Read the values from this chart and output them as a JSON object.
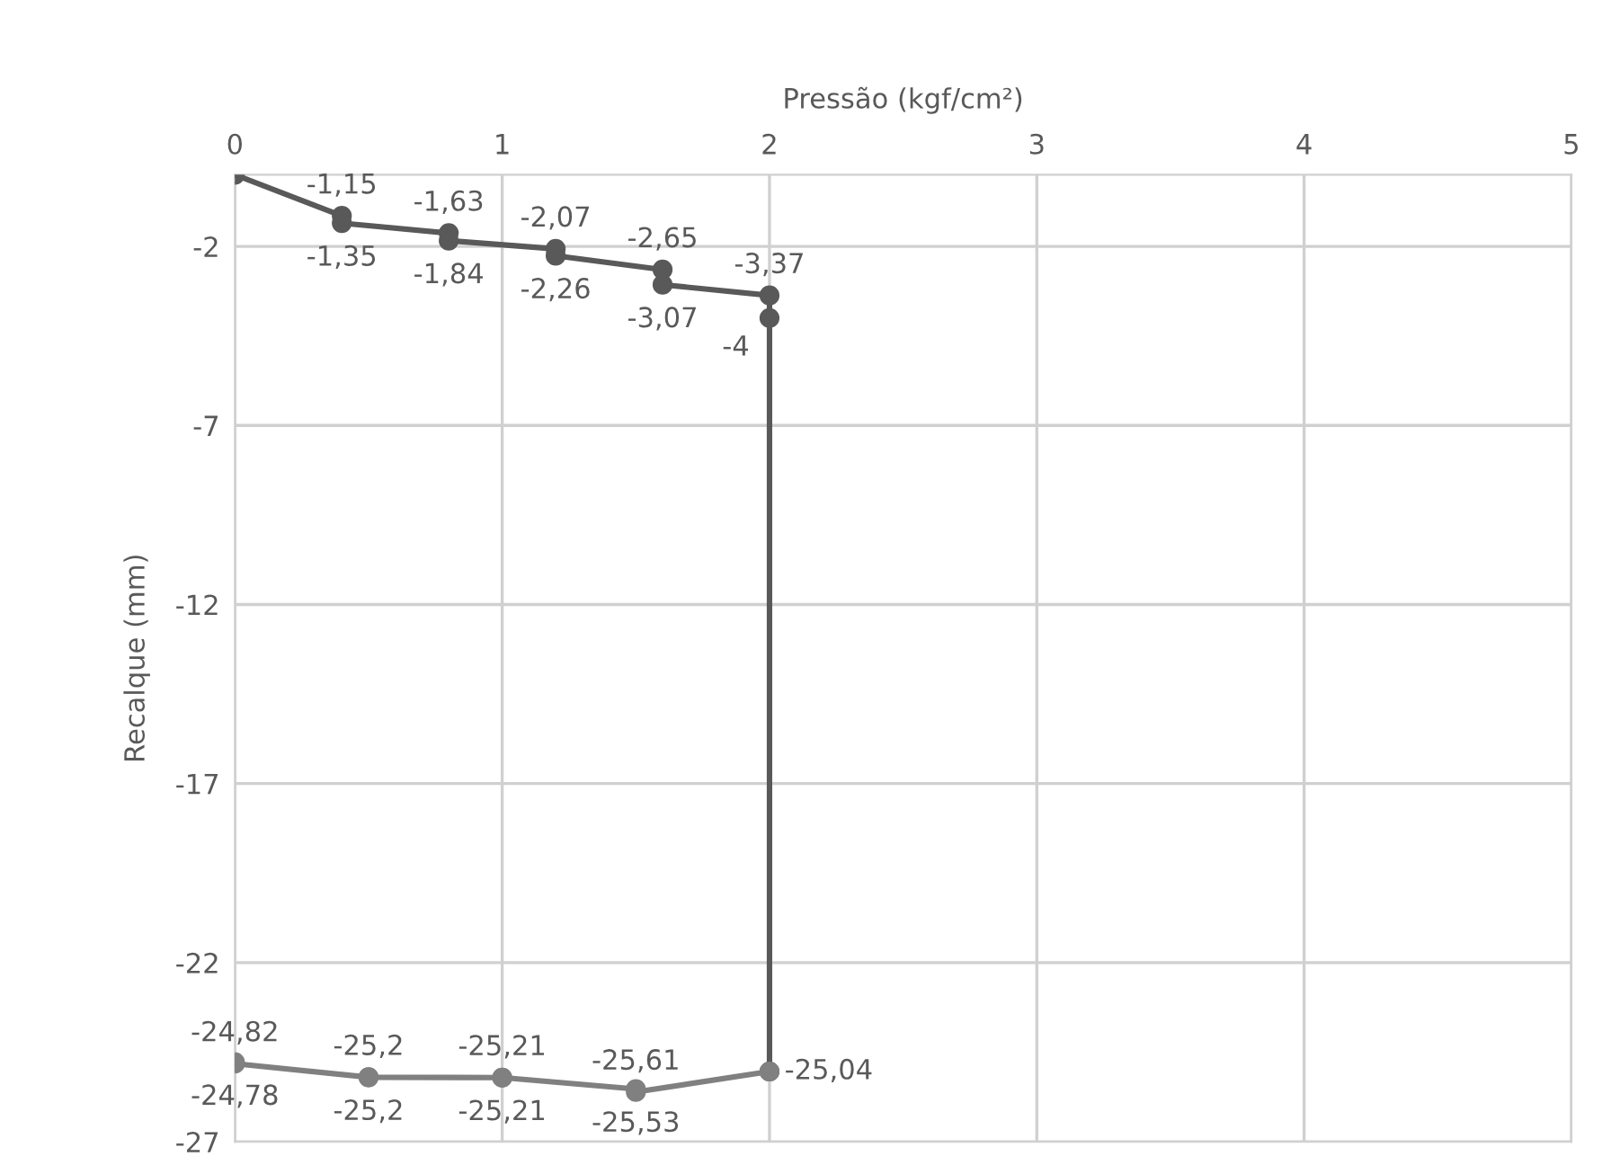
{
  "chart_data": {
    "type": "line",
    "xlabel": "Pressão (kgf/cm²)",
    "ylabel": "Recalque (mm)",
    "xlim": [
      0,
      5
    ],
    "xticks": [
      0,
      1,
      2,
      3,
      4,
      5
    ],
    "ylim": [
      -27,
      0
    ],
    "yticks": [
      -27,
      -22,
      -17,
      -12,
      -7,
      -2
    ],
    "grid": true,
    "marker": "circle",
    "line_style": "solid",
    "series": [
      {
        "color": "#595959",
        "x": [
          0,
          0.4,
          0.4,
          0.8,
          0.8,
          1.2,
          1.2,
          1.6,
          1.6,
          2,
          2,
          2
        ],
        "values": [
          0,
          -1.15,
          -1.35,
          -1.63,
          -1.84,
          -2.07,
          -2.26,
          -2.65,
          -3.07,
          -3.37,
          -4,
          -25.04
        ],
        "value_labels": [
          null,
          "-1,15",
          "-1,35",
          "-1,63",
          "-1,84",
          "-2,07",
          "-2,26",
          "-2,65",
          "-3,07",
          "-3,37",
          "-4",
          null
        ]
      },
      {
        "color": "#808080",
        "x": [
          2,
          1.5,
          1.5,
          1,
          1,
          0.5,
          0.5,
          0,
          0
        ],
        "values": [
          -25.04,
          -25.61,
          -25.53,
          -25.21,
          -25.21,
          -25.2,
          -25.2,
          -24.82,
          -24.78
        ],
        "value_labels": [
          "-25,04",
          "-25,61",
          "-25,53",
          "-25,21",
          "-25,21",
          "-25,2",
          "-25,2",
          "-24,82",
          "-24,78"
        ]
      }
    ]
  }
}
